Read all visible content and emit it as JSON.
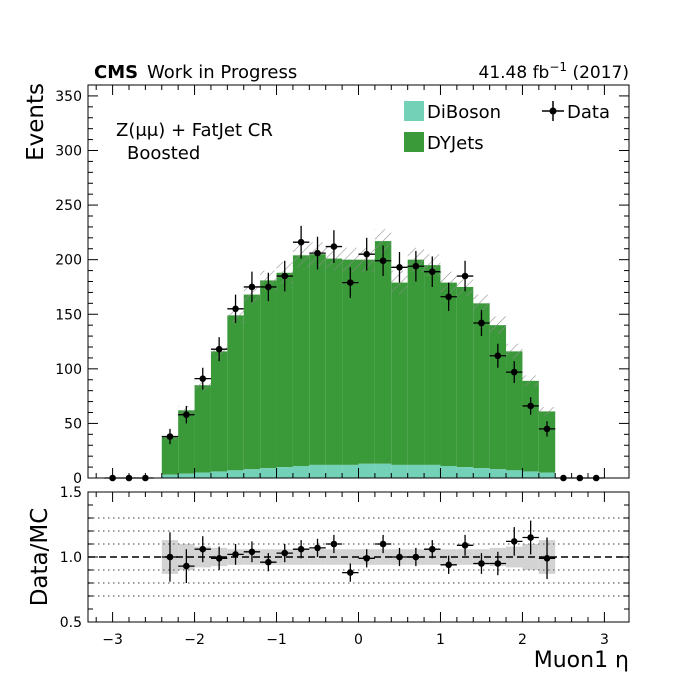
{
  "header": {
    "experiment": "CMS",
    "status": "Work in Progress",
    "lumi_value": "41.48 fb",
    "lumi_exp": "−1",
    "lumi_year": " (2017)"
  },
  "annotations": {
    "region_line1": "Z(μμ) + FatJet CR",
    "region_line2": "Boosted"
  },
  "colors": {
    "dyjets": "#3a9a3a",
    "diboson": "#72d1b6",
    "data": "#000000",
    "ratio_band": "#d3d3d3",
    "hatch": "#8a8a8a"
  },
  "chart_data": [
    {
      "type": "histogram",
      "panel": "main",
      "ylabel": "Events",
      "ylim": [
        0,
        360
      ],
      "xlim": [
        -3.3,
        3.3
      ],
      "yticks": [
        0,
        50,
        100,
        150,
        200,
        250,
        300,
        350
      ],
      "bin_edges": [
        -2.4,
        -2.2,
        -2.0,
        -1.8,
        -1.6,
        -1.4,
        -1.2,
        -1.0,
        -0.8,
        -0.6,
        -0.4,
        -0.2,
        0.0,
        0.2,
        0.4,
        0.6,
        0.8,
        1.0,
        1.2,
        1.4,
        1.6,
        1.8,
        2.0,
        2.2,
        2.4
      ],
      "series": [
        {
          "name": "DiBoson",
          "values": [
            3,
            4,
            5,
            6,
            7,
            8,
            9,
            10,
            11,
            12,
            12,
            12,
            13,
            13,
            12,
            12,
            12,
            11,
            10,
            9,
            8,
            7,
            6,
            5
          ]
        },
        {
          "name": "DYJets",
          "values": [
            35,
            58,
            80,
            110,
            142,
            160,
            172,
            178,
            193,
            193,
            189,
            188,
            187,
            204,
            167,
            188,
            183,
            168,
            165,
            151,
            132,
            109,
            83,
            56
          ]
        }
      ],
      "mc_total_uncertainty": [
        3,
        4,
        5,
        6,
        7,
        8,
        9,
        10,
        11,
        11,
        11,
        11,
        11,
        11,
        11,
        11,
        10,
        10,
        9,
        8,
        8,
        7,
        5,
        4
      ],
      "data": {
        "name": "Data",
        "x": [
          -3.0,
          -2.8,
          -2.6,
          -2.3,
          -2.1,
          -1.9,
          -1.7,
          -1.5,
          -1.3,
          -1.1,
          -0.9,
          -0.7,
          -0.5,
          -0.3,
          -0.1,
          0.1,
          0.3,
          0.5,
          0.7,
          0.9,
          1.1,
          1.3,
          1.5,
          1.7,
          1.9,
          2.1,
          2.3,
          2.5,
          2.7,
          2.9
        ],
        "y": [
          0,
          0,
          0,
          38,
          58,
          91,
          118,
          155,
          175,
          175,
          185,
          216,
          206,
          212,
          179,
          205,
          199,
          193,
          194,
          189,
          166,
          185,
          142,
          112,
          97,
          66,
          45,
          0,
          0,
          0
        ],
        "yerr": [
          2,
          2,
          2,
          7,
          8,
          10,
          11,
          13,
          14,
          13,
          14,
          15,
          15,
          15,
          14,
          15,
          14,
          14,
          14,
          14,
          13,
          14,
          12,
          11,
          10,
          8,
          7,
          2,
          2,
          2
        ]
      },
      "legend": [
        "DiBoson",
        "DYJets",
        "Data"
      ],
      "legend_position": "top-right"
    },
    {
      "type": "ratio",
      "panel": "ratio",
      "xlabel": "Muon1 η",
      "ylabel": "Data/MC",
      "ylim": [
        0.5,
        1.5
      ],
      "yticks": [
        0.5,
        1.0,
        1.5
      ],
      "xticks": [
        -3,
        -2,
        -1,
        0,
        1,
        2,
        3
      ],
      "reference_line": 1.0,
      "dotted_lines": [
        0.7,
        0.8,
        0.9,
        1.1,
        1.2,
        1.3
      ],
      "band": {
        "x_range": [
          -2.4,
          2.4
        ],
        "half_width": [
          0.13,
          0.1,
          0.08,
          0.07,
          0.06,
          0.06,
          0.06,
          0.06,
          0.06,
          0.06,
          0.06,
          0.06,
          0.06,
          0.06,
          0.06,
          0.06,
          0.06,
          0.06,
          0.06,
          0.06,
          0.07,
          0.08,
          0.1,
          0.13
        ]
      },
      "points": {
        "x": [
          -2.3,
          -2.1,
          -1.9,
          -1.7,
          -1.5,
          -1.3,
          -1.1,
          -0.9,
          -0.7,
          -0.5,
          -0.3,
          -0.1,
          0.1,
          0.3,
          0.5,
          0.7,
          0.9,
          1.1,
          1.3,
          1.5,
          1.7,
          1.9,
          2.1,
          2.3
        ],
        "y": [
          1.0,
          0.93,
          1.06,
          0.99,
          1.02,
          1.04,
          0.96,
          1.03,
          1.06,
          1.07,
          1.1,
          0.88,
          0.99,
          1.1,
          1.0,
          1.0,
          1.06,
          0.94,
          1.09,
          0.95,
          0.95,
          1.12,
          1.15,
          0.99
        ],
        "yerr": [
          0.19,
          0.13,
          0.1,
          0.09,
          0.08,
          0.08,
          0.07,
          0.07,
          0.07,
          0.07,
          0.07,
          0.07,
          0.07,
          0.07,
          0.07,
          0.07,
          0.07,
          0.07,
          0.08,
          0.08,
          0.09,
          0.11,
          0.13,
          0.16
        ]
      }
    }
  ]
}
